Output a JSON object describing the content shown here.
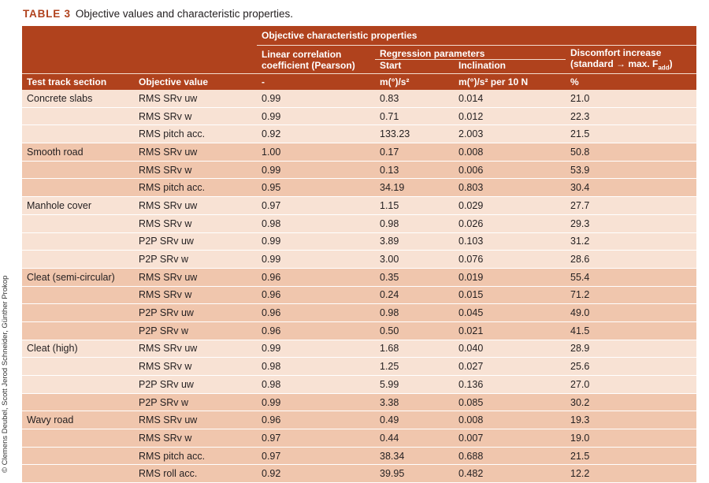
{
  "caption": {
    "label": "TABLE 3",
    "text": "Objective values and characteristic properties."
  },
  "copyright": "© Clemens Deubel, Scott Jerod Schneider, Günther Prokop",
  "header": {
    "group": "Objective characteristic properties",
    "pearson_line1": "Linear correlation",
    "pearson_line2": "coefficient (Pearson)",
    "regression": "Regression parameters",
    "start": "Start",
    "inclination": "Inclination",
    "discomfort_line1": "Discomfort increase",
    "discomfort_line2_a": "(standard → max. F",
    "discomfort_line2_sub": "add",
    "discomfort_line2_b": ")",
    "section": "Test track section",
    "objective": "Objective value",
    "unit_pearson": "-",
    "unit_start": "m(°)/s²",
    "unit_inclination": "m(°)/s² per 10 N",
    "unit_discomfort": "%"
  },
  "rows": [
    {
      "section": "Concrete slabs",
      "value": "RMS SRv uw",
      "pearson": "0.99",
      "start": "0.83",
      "inclination": "0.014",
      "discomfort": "21.0",
      "shade": "light"
    },
    {
      "section": "",
      "value": "RMS SRv w",
      "pearson": "0.99",
      "start": "0.71",
      "inclination": "0.012",
      "discomfort": "22.3",
      "shade": "light"
    },
    {
      "section": "",
      "value": "RMS pitch acc.",
      "pearson": "0.92",
      "start": "133.23",
      "inclination": "2.003",
      "discomfort": "21.5",
      "shade": "light"
    },
    {
      "section": "Smooth road",
      "value": "RMS SRv uw",
      "pearson": "1.00",
      "start": "0.17",
      "inclination": "0.008",
      "discomfort": "50.8",
      "shade": "dark"
    },
    {
      "section": "",
      "value": "RMS SRv w",
      "pearson": "0.99",
      "start": "0.13",
      "inclination": "0.006",
      "discomfort": "53.9",
      "shade": "dark"
    },
    {
      "section": "",
      "value": "RMS pitch acc.",
      "pearson": "0.95",
      "start": "34.19",
      "inclination": "0.803",
      "discomfort": "30.4",
      "shade": "dark"
    },
    {
      "section": "Manhole cover",
      "value": "RMS SRv uw",
      "pearson": "0.97",
      "start": "1.15",
      "inclination": "0.029",
      "discomfort": "27.7",
      "shade": "light"
    },
    {
      "section": "",
      "value": "RMS SRv w",
      "pearson": "0.98",
      "start": "0.98",
      "inclination": "0.026",
      "discomfort": "29.3",
      "shade": "light"
    },
    {
      "section": "",
      "value": "P2P SRv uw",
      "pearson": "0.99",
      "start": "3.89",
      "inclination": "0.103",
      "discomfort": "31.2",
      "shade": "light"
    },
    {
      "section": "",
      "value": "P2P SRv w",
      "pearson": "0.99",
      "start": "3.00",
      "inclination": "0.076",
      "discomfort": "28.6",
      "shade": "light"
    },
    {
      "section": "Cleat (semi-circular)",
      "value": "RMS SRv uw",
      "pearson": "0.96",
      "start": "0.35",
      "inclination": "0.019",
      "discomfort": "55.4",
      "shade": "dark"
    },
    {
      "section": "",
      "value": "RMS SRv w",
      "pearson": "0.96",
      "start": "0.24",
      "inclination": "0.015",
      "discomfort": "71.2",
      "shade": "dark"
    },
    {
      "section": "",
      "value": "P2P SRv uw",
      "pearson": "0.96",
      "start": "0.98",
      "inclination": "0.045",
      "discomfort": "49.0",
      "shade": "dark"
    },
    {
      "section": "",
      "value": "P2P SRv w",
      "pearson": "0.96",
      "start": "0.50",
      "inclination": "0.021",
      "discomfort": "41.5",
      "shade": "dark"
    },
    {
      "section": "Cleat (high)",
      "value": "RMS SRv uw",
      "pearson": "0.99",
      "start": "1.68",
      "inclination": "0.040",
      "discomfort": "28.9",
      "shade": "light"
    },
    {
      "section": "",
      "value": "RMS SRv w",
      "pearson": "0.98",
      "start": "1.25",
      "inclination": "0.027",
      "discomfort": "25.6",
      "shade": "light"
    },
    {
      "section": "",
      "value": "P2P SRv uw",
      "pearson": "0.98",
      "start": "5.99",
      "inclination": "0.136",
      "discomfort": "27.0",
      "shade": "light"
    },
    {
      "section": "",
      "value": "P2P SRv w",
      "pearson": "0.99",
      "start": "3.38",
      "inclination": "0.085",
      "discomfort": "30.2",
      "shade": "dark"
    },
    {
      "section": "Wavy road",
      "value": "RMS SRv uw",
      "pearson": "0.96",
      "start": "0.49",
      "inclination": "0.008",
      "discomfort": "19.3",
      "shade": "dark"
    },
    {
      "section": "",
      "value": "RMS SRv w",
      "pearson": "0.97",
      "start": "0.44",
      "inclination": "0.007",
      "discomfort": "19.0",
      "shade": "dark"
    },
    {
      "section": "",
      "value": "RMS pitch acc.",
      "pearson": "0.97",
      "start": "38.34",
      "inclination": "0.688",
      "discomfort": "21.5",
      "shade": "dark"
    },
    {
      "section": "",
      "value": "RMS roll acc.",
      "pearson": "0.92",
      "start": "39.95",
      "inclination": "0.482",
      "discomfort": "12.2",
      "shade": "dark"
    }
  ],
  "colors": {
    "header": "#b0421d",
    "shade_light": "#f8e2d4",
    "shade_dark": "#f0c6ad",
    "caption_label": "#b0421d"
  }
}
